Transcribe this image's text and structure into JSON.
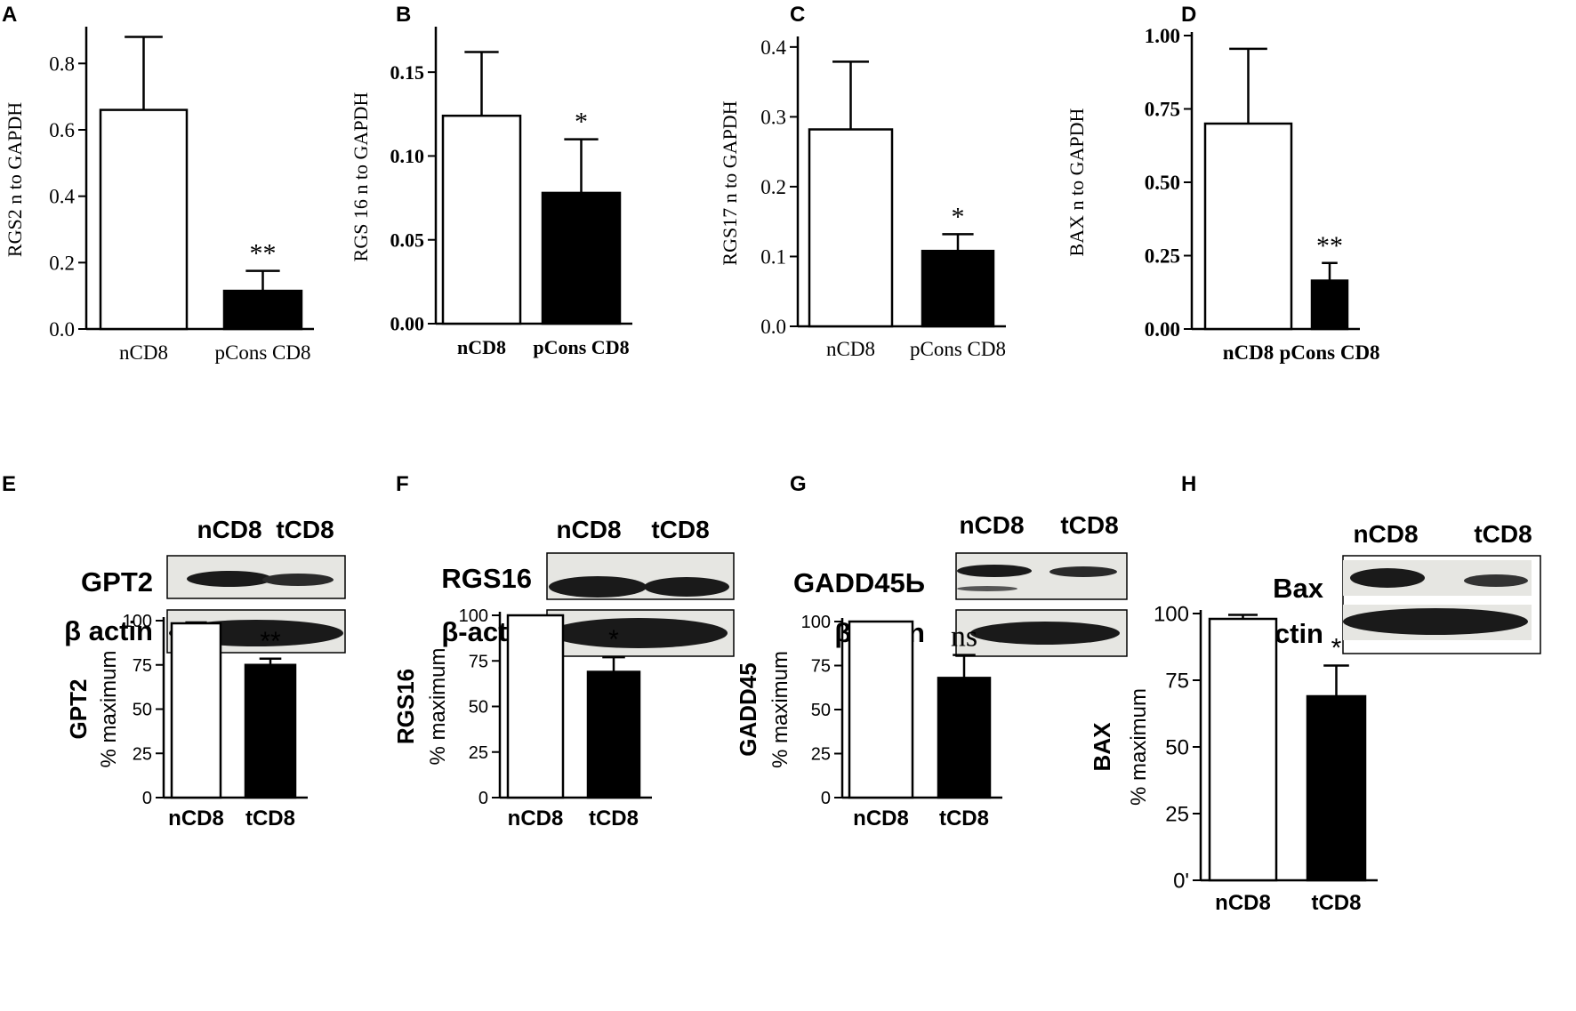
{
  "colors": {
    "ink": "#000000",
    "paper": "#ffffff",
    "blot_band": "#1a1a1a",
    "blot_bg": "#e4e4e0"
  },
  "panels": {
    "A": {
      "letter": "A"
    },
    "B": {
      "letter": "B"
    },
    "C": {
      "letter": "C"
    },
    "D": {
      "letter": "D"
    },
    "E": {
      "letter": "E",
      "blot": {
        "lanes": [
          "nCD8",
          "tCD8"
        ],
        "rows": [
          "GPT2",
          "β actin"
        ]
      }
    },
    "F": {
      "letter": "F",
      "blot": {
        "lanes": [
          "nCD8",
          "tCD8"
        ],
        "rows": [
          "RGS16",
          "β-actin"
        ]
      }
    },
    "G": {
      "letter": "G",
      "blot": {
        "lanes": [
          "nCD8",
          "tCD8"
        ],
        "rows": [
          "GADD45Ь",
          "β-actin"
        ]
      }
    },
    "H": {
      "letter": "H",
      "blot": {
        "lanes": [
          "nCD8",
          "tCD8"
        ],
        "rows": [
          "Bax",
          "β actin"
        ]
      }
    }
  },
  "chart_data": [
    {
      "panel": "A",
      "type": "bar",
      "ylabel": "RGS2 n to GAPDH",
      "categories": [
        "nCD8",
        "pCons CD8"
      ],
      "values": [
        0.66,
        0.115
      ],
      "errors": [
        0.22,
        0.06
      ],
      "significance": [
        "",
        "**"
      ],
      "ylim": [
        0,
        0.9
      ],
      "yticks": [
        0.0,
        0.2,
        0.4,
        0.6,
        0.8
      ],
      "ytick_labels": [
        "0.0",
        "0.2",
        "0.4",
        "0.6",
        "0.8"
      ]
    },
    {
      "panel": "B",
      "type": "bar",
      "ylabel": "RGS 16 n to GAPDH",
      "categories": [
        "nCD8",
        "pCons CD8"
      ],
      "values": [
        0.124,
        0.078
      ],
      "errors": [
        0.038,
        0.032
      ],
      "significance": [
        "",
        "*"
      ],
      "ylim": [
        0,
        0.175
      ],
      "yticks": [
        0.0,
        0.05,
        0.1,
        0.15
      ],
      "ytick_labels": [
        "0.00",
        "0.05",
        "0.10",
        "0.15"
      ]
    },
    {
      "panel": "C",
      "type": "bar",
      "ylabel": "RGS17 n to GAPDH",
      "categories": [
        "nCD8",
        "pCons CD8"
      ],
      "values": [
        0.282,
        0.108
      ],
      "errors": [
        0.097,
        0.024
      ],
      "significance": [
        "",
        "*"
      ],
      "ylim": [
        0,
        0.41
      ],
      "yticks": [
        0.0,
        0.1,
        0.2,
        0.3,
        0.4
      ],
      "ytick_labels": [
        "0.0",
        "0.1",
        "0.2",
        "0.3",
        "0.4"
      ]
    },
    {
      "panel": "D",
      "type": "bar",
      "ylabel": "BAX n to GAPDH",
      "categories": [
        "nCD8",
        "pCons CD8"
      ],
      "values": [
        0.7,
        0.165
      ],
      "errors": [
        0.255,
        0.06
      ],
      "significance": [
        "",
        "**"
      ],
      "ylim": [
        0,
        1.0
      ],
      "yticks": [
        0.0,
        0.25,
        0.5,
        0.75,
        1.0
      ],
      "ytick_labels": [
        "0.00",
        "0.25",
        "0.50",
        "0.75",
        "1.00"
      ]
    },
    {
      "panel": "E",
      "type": "bar",
      "ylabel": "% maximum",
      "ylabel_bold": "GPT2",
      "categories": [
        "nCD8",
        "tCD8"
      ],
      "values": [
        98.5,
        75
      ],
      "errors": [
        0.5,
        3.5
      ],
      "significance": [
        "",
        "**"
      ],
      "ylim": [
        0,
        100
      ],
      "yticks": [
        0,
        25,
        50,
        75,
        100
      ],
      "ytick_labels": [
        "0",
        "25",
        "50",
        "75",
        "100"
      ]
    },
    {
      "panel": "F",
      "type": "bar",
      "ylabel": "% maximum",
      "ylabel_bold": "RGS16",
      "categories": [
        "nCD8",
        "tCD8"
      ],
      "values": [
        100,
        69
      ],
      "errors": [
        0,
        8
      ],
      "significance": [
        "",
        "*"
      ],
      "ylim": [
        0,
        100
      ],
      "yticks": [
        0,
        25,
        50,
        75,
        100
      ],
      "ytick_labels": [
        "0",
        "25",
        "50",
        "75",
        "100"
      ]
    },
    {
      "panel": "G",
      "type": "bar",
      "ylabel": "% maximum",
      "ylabel_bold": "GADD45",
      "categories": [
        "nCD8",
        "tCD8"
      ],
      "values": [
        100,
        68
      ],
      "errors": [
        0,
        13
      ],
      "significance": [
        "",
        "ns"
      ],
      "ylim": [
        0,
        100
      ],
      "yticks": [
        0,
        25,
        50,
        75,
        100
      ],
      "ytick_labels": [
        "0",
        "25",
        "50",
        "75",
        "100"
      ]
    },
    {
      "panel": "H",
      "type": "bar",
      "ylabel": "% maximum",
      "ylabel_bold": "BAX",
      "categories": [
        "nCD8",
        "tCD8"
      ],
      "values": [
        98,
        69
      ],
      "errors": [
        1.5,
        11.5
      ],
      "significance": [
        "",
        "*"
      ],
      "ylim": [
        0,
        100
      ],
      "yticks": [
        0,
        25,
        50,
        75,
        100
      ],
      "ytick_labels": [
        "0'",
        "25",
        "50",
        "75",
        "100"
      ]
    }
  ]
}
